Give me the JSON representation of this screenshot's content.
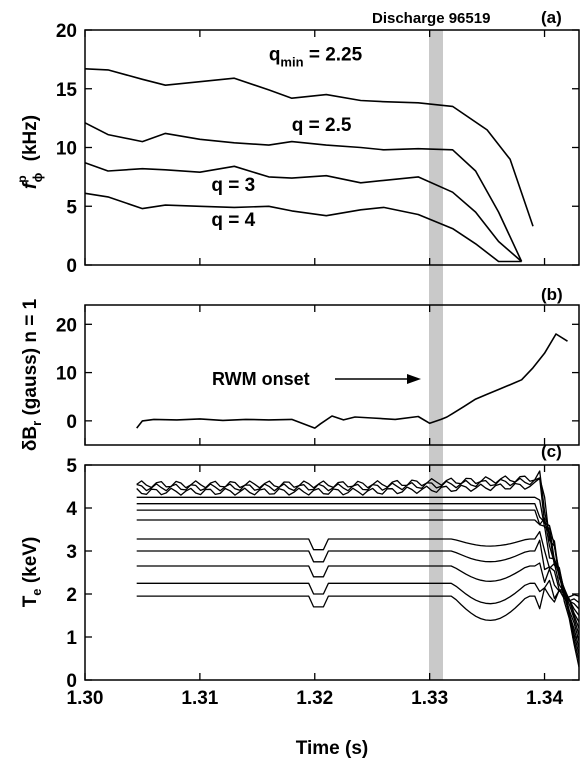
{
  "chart_data": [
    {
      "panel": "(a)",
      "type": "line",
      "annotation": "Discharge 96519",
      "ylabel_main": "f",
      "ylabel_sup": "p",
      "ylabel_sub": "ϕ",
      "ylabel_unit": "(kHz)",
      "xlim": [
        1.3,
        1.343
      ],
      "ylim": [
        0,
        20
      ],
      "yticks": [
        "0",
        "5",
        "10",
        "15",
        "20"
      ],
      "series": [
        {
          "label_main": "q",
          "label_sub": "min",
          "label_rest": " = 2.25",
          "label_pos": [
            1.316,
            17.4
          ],
          "x": [
            1.3,
            1.302,
            1.305,
            1.307,
            1.31,
            1.313,
            1.316,
            1.318,
            1.321,
            1.324,
            1.326,
            1.329,
            1.332,
            1.335,
            1.337,
            1.339
          ],
          "y": [
            16.7,
            16.6,
            15.8,
            15.3,
            15.6,
            15.9,
            14.9,
            14.2,
            14.5,
            14.0,
            13.9,
            13.8,
            13.5,
            11.5,
            9.0,
            3.3
          ]
        },
        {
          "label_main": "q",
          "label_sub": "",
          "label_rest": " = 2.5",
          "label_pos": [
            1.318,
            11.4
          ],
          "x": [
            1.3,
            1.302,
            1.305,
            1.307,
            1.31,
            1.313,
            1.316,
            1.318,
            1.321,
            1.324,
            1.326,
            1.329,
            1.332,
            1.334,
            1.336,
            1.338
          ],
          "y": [
            12.1,
            11.1,
            10.5,
            11.2,
            10.7,
            10.4,
            10.2,
            10.5,
            10.2,
            10.0,
            9.8,
            9.9,
            9.8,
            8.0,
            4.5,
            0.3
          ]
        },
        {
          "label_main": "q",
          "label_sub": "",
          "label_rest": " = 3",
          "label_pos": [
            1.311,
            6.3
          ],
          "x": [
            1.3,
            1.302,
            1.305,
            1.307,
            1.31,
            1.313,
            1.316,
            1.318,
            1.321,
            1.324,
            1.326,
            1.329,
            1.332,
            1.334,
            1.336,
            1.338
          ],
          "y": [
            8.7,
            8.0,
            8.2,
            8.1,
            7.9,
            8.4,
            7.5,
            7.4,
            7.6,
            7.0,
            7.2,
            7.5,
            6.2,
            4.5,
            2.0,
            0.3
          ]
        },
        {
          "label_main": "q",
          "label_sub": "",
          "label_rest": " = 4",
          "label_pos": [
            1.311,
            3.3
          ],
          "x": [
            1.3,
            1.302,
            1.305,
            1.307,
            1.31,
            1.313,
            1.316,
            1.318,
            1.321,
            1.324,
            1.326,
            1.329,
            1.332,
            1.334,
            1.336,
            1.338
          ],
          "y": [
            6.1,
            5.8,
            4.8,
            5.1,
            5.0,
            4.9,
            5.0,
            4.6,
            4.2,
            4.7,
            4.9,
            4.3,
            3.1,
            1.8,
            0.3,
            0.3
          ]
        }
      ]
    },
    {
      "panel": "(b)",
      "type": "line",
      "ylabel_main": "δB",
      "ylabel_sub": "r",
      "ylabel_unit": "(gauss) n = 1",
      "annotation": "RWM onset",
      "xlim": [
        1.3,
        1.343
      ],
      "ylim": [
        -5,
        24
      ],
      "yticks": [
        "0",
        "10",
        "20"
      ],
      "series": [
        {
          "x": [
            1.3045,
            1.305,
            1.306,
            1.308,
            1.31,
            1.312,
            1.314,
            1.316,
            1.318,
            1.32,
            1.3205,
            1.3215,
            1.3225,
            1.3235,
            1.325,
            1.327,
            1.329,
            1.33,
            1.331,
            1.3315,
            1.332,
            1.333,
            1.334,
            1.335,
            1.336,
            1.337,
            1.338,
            1.339,
            1.34,
            1.341,
            1.342
          ],
          "y": [
            -1.5,
            0.0,
            0.3,
            0.2,
            0.4,
            0.1,
            0.3,
            0.2,
            0.3,
            -1.5,
            -0.6,
            1.0,
            0.2,
            0.8,
            0.6,
            0.3,
            0.9,
            -0.5,
            0.3,
            0.8,
            1.5,
            3.0,
            4.5,
            5.5,
            6.5,
            7.5,
            8.5,
            11.0,
            14.0,
            18.0,
            16.5
          ]
        }
      ]
    },
    {
      "panel": "(c)",
      "type": "line",
      "ylabel_main": "T",
      "ylabel_sub": "e",
      "ylabel_unit": "(keV)",
      "xlabel": "Time (s)",
      "xlim": [
        1.3,
        1.343
      ],
      "ylim": [
        0,
        5
      ],
      "xticks": [
        "1.30",
        "1.31",
        "1.32",
        "1.33",
        "1.34"
      ],
      "yticks": [
        "0",
        "1",
        "2",
        "3",
        "4",
        "5"
      ],
      "levels": [
        4.55,
        4.48,
        4.38,
        4.25,
        4.1,
        3.95,
        3.72,
        3.28,
        3.0,
        2.65,
        2.25,
        1.95
      ],
      "t_start": 1.3045,
      "t_end": 1.343
    }
  ]
}
